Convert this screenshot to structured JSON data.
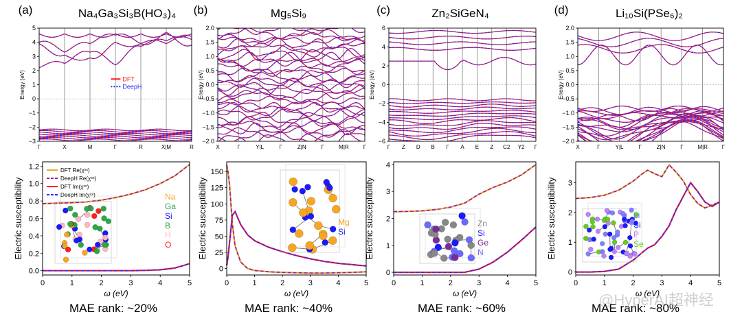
{
  "figure": {
    "watermark": "@HyperAI超神经"
  },
  "colors": {
    "dft_line": "#ff1a1a",
    "deeph_line": "#2b2bff",
    "dft_re": "#f5a623",
    "deeph_re": "#8b1fa8",
    "dft_im": "#ff1a1a",
    "deeph_im": "#2b2bff",
    "axis": "#000000",
    "fermi": "#888888",
    "na": "#f5a623",
    "ga": "#2aa84a",
    "si": "#1a1aff",
    "b": "#2aa84a",
    "h": "#ffb6c1",
    "o": "#ff2020",
    "mg": "#f5a623",
    "zn": "#888888",
    "ge": "#7b2a9b",
    "n": "#6a6aff",
    "li": "#8080ff",
    "p": "#c080ff",
    "se": "#66cc22"
  },
  "chart_data": [
    {
      "panel": "(a)",
      "title": "Na₄Ga₃Si₃B(HO₃)₄",
      "type": "line",
      "band": {
        "ylabel": "Energy (eV)",
        "ylim": [
          -3,
          5
        ],
        "yticks": [
          "−3",
          "−2",
          "−1",
          "0",
          "1",
          "2",
          "3",
          "4",
          "5"
        ],
        "kpoints": [
          "Γ",
          "X",
          "M",
          "Γ",
          "R",
          "X|M",
          "R"
        ],
        "legend": [
          "DFT",
          "DeepH"
        ],
        "legend_position": "center-right",
        "conduction_bands": [
          [
            4.6,
            4.6,
            4.6,
            4.6,
            4.6,
            4.6,
            4.6
          ],
          [
            4.0,
            3.3,
            3.9,
            4.5,
            3.9,
            3.9,
            4.4
          ],
          [
            3.9,
            3.1,
            2.9,
            4.0,
            3.9,
            4.7,
            3.8
          ],
          [
            2.2,
            2.5,
            3.3,
            2.4,
            3.7,
            4.1,
            4.2
          ]
        ],
        "valence_bands": [
          -2.2,
          -2.3,
          -2.4,
          -2.5,
          -2.6,
          -2.7,
          -2.8,
          -2.9
        ]
      },
      "susceptibility": {
        "ylabel": "Electric susceptibility",
        "xlabel": "ω (eV)",
        "xlim": [
          0,
          5
        ],
        "ylim": [
          -0.05,
          1.25
        ],
        "xticks": [
          "0",
          "1",
          "2",
          "3",
          "4",
          "5"
        ],
        "yticks": [
          "0.0",
          "0.2",
          "0.4",
          "0.6",
          "0.8",
          "1.0",
          "1.2"
        ],
        "legend": [
          "DFT Re(χˣˣ)",
          "DeepH Re(χˣˣ)",
          "DFT Im(χˣˣ)",
          "DeepH Im(χˣˣ)"
        ],
        "legend_position": "top-left",
        "x": [
          0,
          0.5,
          1,
          1.5,
          2,
          2.5,
          3,
          3.5,
          4,
          4.5,
          5
        ],
        "re": [
          0.77,
          0.775,
          0.78,
          0.79,
          0.81,
          0.84,
          0.88,
          0.93,
          1.0,
          1.09,
          1.22
        ],
        "im": [
          0,
          0,
          0,
          0,
          0,
          0,
          0,
          0.003,
          0.01,
          0.03,
          0.08
        ]
      },
      "structure_labels": [
        "Na",
        "Ga",
        "Si",
        "B",
        "H",
        "O"
      ],
      "mae_rank": "MAE rank: ~20%"
    },
    {
      "panel": "(b)",
      "title": "Mg₅Si₉",
      "type": "line",
      "band": {
        "ylabel": "Energy (eV)",
        "ylim": [
          -2.0,
          2.0
        ],
        "yticks": [
          "−2.0",
          "−1.5",
          "−1.0",
          "−0.5",
          "0.0",
          "0.5",
          "1.0",
          "1.5",
          "2.0"
        ],
        "kpoints": [
          "X",
          "Γ",
          "Y|L",
          "Γ",
          "Z|N",
          "Γ",
          "M|R",
          "Γ"
        ],
        "band_count": 32
      },
      "susceptibility": {
        "ylabel": "Electric susceptibility",
        "xlabel": "ω (eV)",
        "xlim": [
          0,
          5
        ],
        "ylim": [
          -10,
          165
        ],
        "xticks": [
          "0",
          "1",
          "2",
          "3",
          "4",
          "5"
        ],
        "yticks": [
          "0",
          "25",
          "50",
          "75",
          "100",
          "125",
          "150"
        ],
        "x": [
          0.02,
          0.1,
          0.2,
          0.3,
          0.5,
          0.75,
          1,
          1.5,
          2,
          2.5,
          3,
          3.5,
          4,
          4.5,
          5
        ],
        "re": [
          160,
          130,
          70,
          35,
          10,
          0,
          -3,
          -5,
          -6,
          -6.5,
          -7,
          -7,
          -6.5,
          -6,
          -5
        ],
        "im": [
          5,
          40,
          82,
          88,
          68,
          52,
          43,
          33,
          26,
          20,
          15,
          11,
          8,
          6,
          4
        ]
      },
      "structure_labels": [
        "Mg",
        "Si"
      ],
      "mae_rank": "MAE rank: ~40%"
    },
    {
      "panel": "(c)",
      "title": "Zn₂SiGeN₄",
      "type": "line",
      "band": {
        "ylabel": "Energy (eV)",
        "ylim": [
          -6,
          6
        ],
        "yticks": [
          "−6",
          "−4",
          "−2",
          "0",
          "2",
          "4",
          "6"
        ],
        "kpoints": [
          "Γ",
          "Z",
          "D",
          "B",
          "Γ",
          "A",
          "E",
          "Z",
          "C2",
          "Y2",
          "Γ"
        ],
        "band_count_valence": 14,
        "band_count_conduction": 7
      },
      "susceptibility": {
        "ylabel": "Electric susceptibility",
        "xlabel": "ω (eV)",
        "xlim": [
          0,
          5
        ],
        "ylim": [
          -0.1,
          4.1
        ],
        "xticks": [
          "0",
          "1",
          "2",
          "3",
          "4",
          "5"
        ],
        "yticks": [
          "0",
          "1",
          "2",
          "3",
          "4"
        ],
        "x": [
          0,
          0.5,
          1,
          1.5,
          2,
          2.5,
          3,
          3.5,
          4,
          4.5,
          5
        ],
        "re": [
          2.25,
          2.26,
          2.28,
          2.33,
          2.42,
          2.57,
          2.9,
          3.15,
          3.35,
          3.62,
          4.0
        ],
        "im": [
          0,
          0,
          0,
          0,
          0,
          0,
          0.12,
          0.38,
          0.75,
          1.2,
          1.68
        ]
      },
      "structure_labels": [
        "Zn",
        "Si",
        "Ge",
        "N"
      ],
      "mae_rank": "MAE rank: ~60%"
    },
    {
      "panel": "(d)",
      "title": "Li₁₀Si(PSe₆)₂",
      "type": "line",
      "band": {
        "ylabel": "Energy (eV)",
        "ylim": [
          -2.0,
          2.0
        ],
        "yticks": [
          "−2.0",
          "−1.5",
          "−1.0",
          "−0.5",
          "0.0",
          "0.5",
          "1.0",
          "1.5",
          "2.0"
        ],
        "kpoints": [
          "X",
          "Γ",
          "Y|L",
          "Γ",
          "Z|N",
          "Γ",
          "M|R",
          "Γ"
        ],
        "band_count_valence": 20,
        "band_count_conduction": 4
      },
      "susceptibility": {
        "ylabel": "Electric susceptibility",
        "xlabel": "ω (eV)",
        "xlim": [
          0,
          5
        ],
        "ylim": [
          -0.1,
          3.7
        ],
        "xticks": [
          "0",
          "1",
          "2",
          "3",
          "4",
          "5"
        ],
        "yticks": [
          "0",
          "1",
          "2",
          "3"
        ],
        "x": [
          0,
          0.5,
          1,
          1.5,
          2,
          2.25,
          2.5,
          2.75,
          3,
          3.25,
          3.5,
          3.75,
          4,
          4.25,
          4.5,
          4.75,
          5
        ],
        "re": [
          2.47,
          2.5,
          2.58,
          2.75,
          3.05,
          3.25,
          3.42,
          3.3,
          3.2,
          3.6,
          3.35,
          3.05,
          2.6,
          2.3,
          2.15,
          2.25,
          2.35
        ],
        "im": [
          0,
          0,
          0.02,
          0.1,
          0.4,
          0.6,
          0.8,
          0.92,
          1.2,
          1.55,
          2.1,
          2.55,
          3.0,
          2.7,
          2.35,
          2.2,
          2.35
        ]
      },
      "structure_labels": [
        "Li",
        "Si",
        "P",
        "Se"
      ],
      "mae_rank": "MAE rank: ~80%"
    }
  ]
}
